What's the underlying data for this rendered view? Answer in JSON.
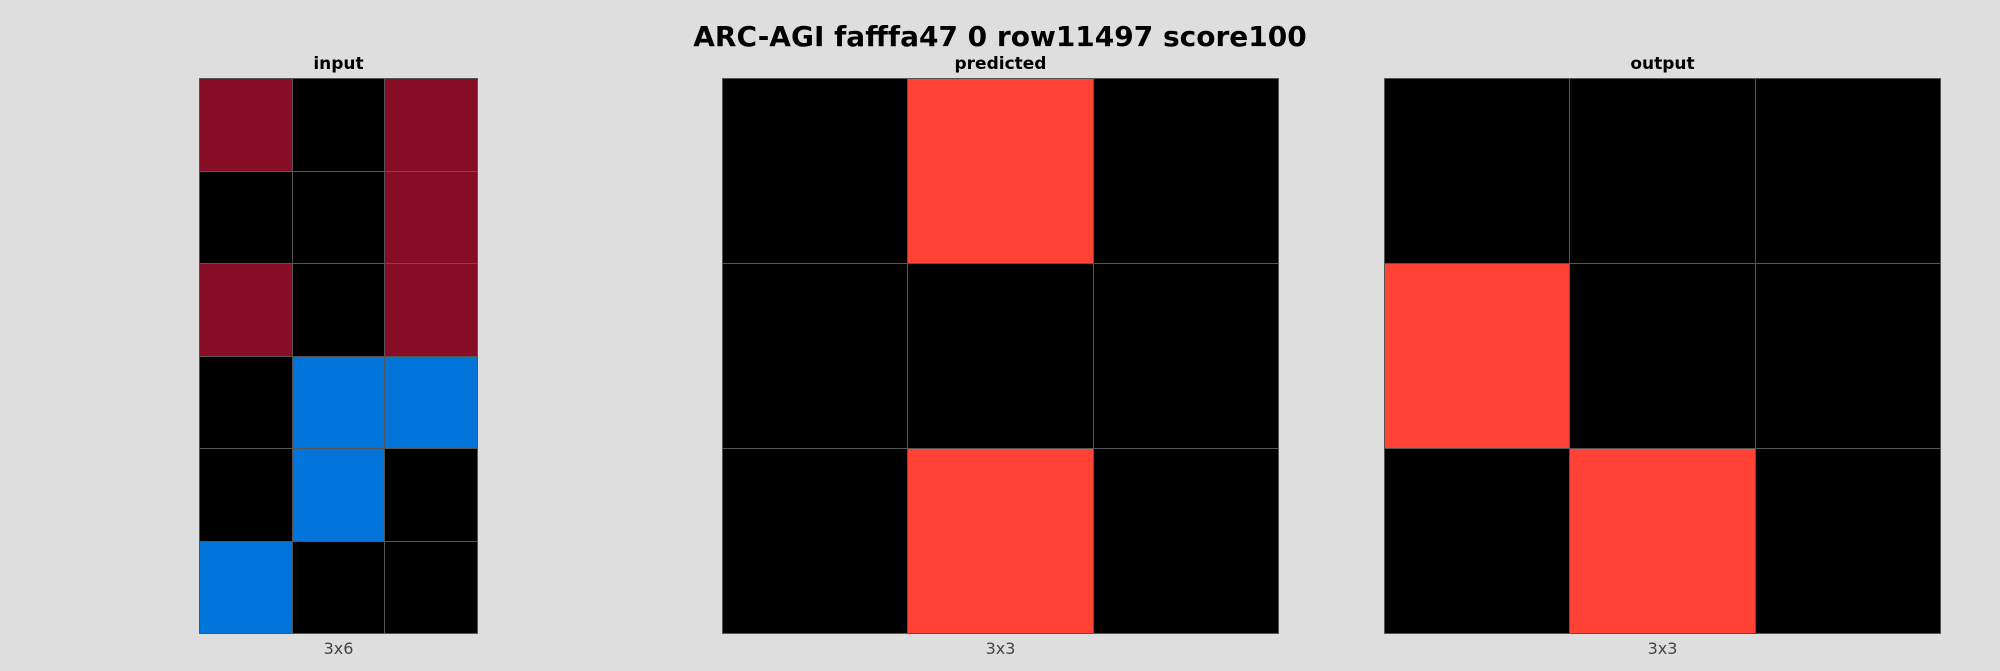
{
  "title": "ARC-AGI fafffa47 0 row11497 score100",
  "palette": {
    "0": "#000000",
    "2": "#ff4136",
    "1": "#0074d9",
    "9": "#870c25"
  },
  "panels": [
    {
      "key": "input",
      "title": "input",
      "caption": "3x6",
      "cols": 3,
      "rows": 6,
      "grid": [
        [
          9,
          0,
          9
        ],
        [
          0,
          0,
          9
        ],
        [
          9,
          0,
          9
        ],
        [
          0,
          1,
          1
        ],
        [
          0,
          1,
          0
        ],
        [
          1,
          0,
          0
        ]
      ]
    },
    {
      "key": "predicted",
      "title": "predicted",
      "caption": "3x3",
      "cols": 3,
      "rows": 3,
      "grid": [
        [
          0,
          2,
          0
        ],
        [
          0,
          0,
          0
        ],
        [
          0,
          2,
          0
        ]
      ]
    },
    {
      "key": "output",
      "title": "output",
      "caption": "3x3",
      "cols": 3,
      "rows": 3,
      "grid": [
        [
          0,
          0,
          0
        ],
        [
          2,
          0,
          0
        ],
        [
          0,
          2,
          0
        ]
      ]
    }
  ]
}
